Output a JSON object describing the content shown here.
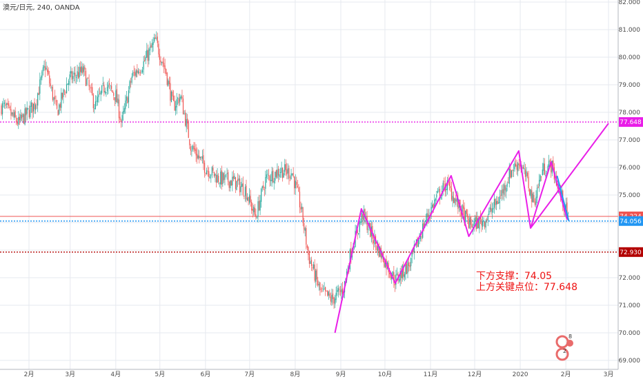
{
  "header": {
    "symbol": "澳元/日元, 240, OANDA"
  },
  "chart_data": {
    "type": "candlestick",
    "y_axis": {
      "ticks": [
        "82.000",
        "81.000",
        "80.000",
        "79.000",
        "78.000",
        "77.000",
        "76.000",
        "75.000",
        "74.000",
        "73.000",
        "72.000",
        "71.000",
        "70.000",
        "69.000"
      ],
      "tick_values": [
        82,
        81,
        80,
        79,
        78,
        77,
        76,
        75,
        74,
        73,
        72,
        71,
        70,
        69
      ],
      "ylim": [
        69,
        82
      ],
      "side": "right"
    },
    "x_axis": {
      "ticks": [
        "2月",
        "3月",
        "4月",
        "5月",
        "6月",
        "7月",
        "8月",
        "9月",
        "10月",
        "11月",
        "12月",
        "2020",
        "2月",
        "3月"
      ],
      "x_positions": [
        "2019-02",
        "2019-03",
        "2019-04",
        "2019-05",
        "2019-06",
        "2019-07",
        "2019-08",
        "2019-09",
        "2019-10",
        "2019-11",
        "2019-12",
        "2020-01",
        "2020-02",
        "2020-03"
      ]
    },
    "grid": true,
    "price_path": [
      [
        "2019-01-15",
        78.2
      ],
      [
        "2019-01-25",
        77.6
      ],
      [
        "2019-02-05",
        78.3
      ],
      [
        "2019-02-12",
        79.7
      ],
      [
        "2019-02-20",
        78.0
      ],
      [
        "2019-02-28",
        79.2
      ],
      [
        "2019-03-10",
        79.5
      ],
      [
        "2019-03-18",
        78.2
      ],
      [
        "2019-03-25",
        79.0
      ],
      [
        "2019-04-01",
        78.6
      ],
      [
        "2019-04-05",
        77.6
      ],
      [
        "2019-04-12",
        79.3
      ],
      [
        "2019-04-20",
        79.8
      ],
      [
        "2019-04-28",
        80.6
      ],
      [
        "2019-05-05",
        79.5
      ],
      [
        "2019-05-10",
        78.2
      ],
      [
        "2019-05-15",
        78.6
      ],
      [
        "2019-05-22",
        76.8
      ],
      [
        "2019-06-01",
        76.0
      ],
      [
        "2019-06-10",
        75.6
      ],
      [
        "2019-06-20",
        75.5
      ],
      [
        "2019-06-28",
        75.2
      ],
      [
        "2019-07-05",
        74.2
      ],
      [
        "2019-07-12",
        75.6
      ],
      [
        "2019-07-22",
        75.9
      ],
      [
        "2019-07-30",
        75.8
      ],
      [
        "2019-08-05",
        74.5
      ],
      [
        "2019-08-10",
        72.8
      ],
      [
        "2019-08-18",
        71.5
      ],
      [
        "2019-08-26",
        71.2
      ],
      [
        "2019-09-03",
        71.6
      ],
      [
        "2019-09-08",
        73.0
      ],
      [
        "2019-09-16",
        74.3
      ],
      [
        "2019-09-25",
        73.2
      ],
      [
        "2019-10-01",
        72.6
      ],
      [
        "2019-10-08",
        71.9
      ],
      [
        "2019-10-18",
        72.5
      ],
      [
        "2019-10-28",
        74.0
      ],
      [
        "2019-11-05",
        74.9
      ],
      [
        "2019-11-12",
        75.4
      ],
      [
        "2019-11-20",
        74.6
      ],
      [
        "2019-11-28",
        73.9
      ],
      [
        "2019-12-08",
        74.1
      ],
      [
        "2019-12-18",
        74.9
      ],
      [
        "2019-12-26",
        75.9
      ],
      [
        "2019-12-31",
        76.2
      ],
      [
        "2020-01-06",
        75.5
      ],
      [
        "2020-01-10",
        74.7
      ],
      [
        "2020-01-16",
        75.9
      ],
      [
        "2020-01-22",
        76.1
      ],
      [
        "2020-01-28",
        75.1
      ],
      [
        "2020-02-03",
        74.1
      ]
    ],
    "hlines": [
      {
        "label": "77.648",
        "value": 77.648,
        "color": "#e91ee8",
        "style": "dotted"
      },
      {
        "label": "74.224",
        "value": 74.224,
        "color": "#ef5350",
        "style": "solid"
      },
      {
        "label": "74.056",
        "value": 74.056,
        "color": "#2196f3",
        "style": "dotted"
      },
      {
        "label": "72.930",
        "value": 72.93,
        "color": "#b30000",
        "style": "dotted"
      }
    ],
    "wave_lines": [
      {
        "color": "#e91ee8",
        "points": [
          [
            "2019-08-28",
            70.0
          ],
          [
            "2019-09-15",
            74.5
          ],
          [
            "2019-10-08",
            71.8
          ],
          [
            "2019-11-15",
            75.7
          ],
          [
            "2019-11-27",
            73.5
          ],
          [
            "2019-12-31",
            76.6
          ],
          [
            "2020-01-08",
            73.8
          ],
          [
            "2020-01-22",
            76.2
          ],
          [
            "2020-02-02",
            74.1
          ]
        ]
      },
      {
        "color": "#e91ee8",
        "points": [
          [
            "2020-01-08",
            73.8
          ],
          [
            "2020-03-01",
            77.6
          ]
        ]
      },
      {
        "color": "#2196f3",
        "points": [
          [
            "2020-01-26",
            75.7
          ],
          [
            "2020-02-03",
            74.06
          ]
        ]
      }
    ],
    "colors": {
      "up": "#26a69a",
      "down": "#ef5350",
      "wave": "#e91ee8",
      "grid": "#e6e9ef",
      "axis_text": "#4a4a4a"
    }
  },
  "annotation": {
    "line1": "下方支撑：74.05",
    "line2": "上方关键点位：77.648"
  },
  "watermark": {
    "icon": "tradingview-logo-icon"
  }
}
